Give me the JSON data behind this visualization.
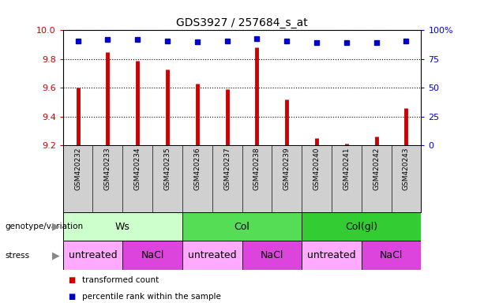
{
  "title": "GDS3927 / 257684_s_at",
  "samples": [
    "GSM420232",
    "GSM420233",
    "GSM420234",
    "GSM420235",
    "GSM420236",
    "GSM420237",
    "GSM420238",
    "GSM420239",
    "GSM420240",
    "GSM420241",
    "GSM420242",
    "GSM420243"
  ],
  "bar_values": [
    9.6,
    9.85,
    9.79,
    9.73,
    9.63,
    9.59,
    9.88,
    9.52,
    9.25,
    9.21,
    9.26,
    9.46
  ],
  "dot_values": [
    91,
    92,
    92,
    91,
    90,
    91,
    93,
    91,
    89,
    89,
    89,
    91
  ],
  "ylim_left": [
    9.2,
    10.0
  ],
  "ylim_right": [
    0,
    100
  ],
  "yticks_left": [
    9.2,
    9.4,
    9.6,
    9.8,
    10.0
  ],
  "yticks_right": [
    0,
    25,
    50,
    75,
    100
  ],
  "ytick_labels_right": [
    "0",
    "25",
    "50",
    "75",
    "100%"
  ],
  "bar_color": "#cc0000",
  "dot_color": "#0000cc",
  "bar_baseline": 9.2,
  "bar_linewidth": 3.5,
  "dot_size": 5,
  "genotype_groups": [
    {
      "label": "Ws",
      "start": 0,
      "end": 3,
      "color": "#ccffcc"
    },
    {
      "label": "Col",
      "start": 4,
      "end": 7,
      "color": "#55dd55"
    },
    {
      "label": "Col(gl)",
      "start": 8,
      "end": 11,
      "color": "#33cc33"
    }
  ],
  "stress_groups": [
    {
      "label": "untreated",
      "start": 0,
      "end": 1,
      "color": "#ffaaff"
    },
    {
      "label": "NaCl",
      "start": 2,
      "end": 3,
      "color": "#dd44dd"
    },
    {
      "label": "untreated",
      "start": 4,
      "end": 5,
      "color": "#ffaaff"
    },
    {
      "label": "NaCl",
      "start": 6,
      "end": 7,
      "color": "#dd44dd"
    },
    {
      "label": "untreated",
      "start": 8,
      "end": 9,
      "color": "#ffaaff"
    },
    {
      "label": "NaCl",
      "start": 10,
      "end": 11,
      "color": "#dd44dd"
    }
  ],
  "legend_items": [
    {
      "label": "transformed count",
      "color": "#cc0000"
    },
    {
      "label": "percentile rank within the sample",
      "color": "#0000cc"
    }
  ],
  "left_label_genotype": "genotype/variation",
  "left_label_stress": "stress",
  "tick_color_left": "#cc0000",
  "tick_color_right": "#0000cc",
  "sample_bg_color": "#d0d0d0",
  "grid_dotted_color": "black"
}
